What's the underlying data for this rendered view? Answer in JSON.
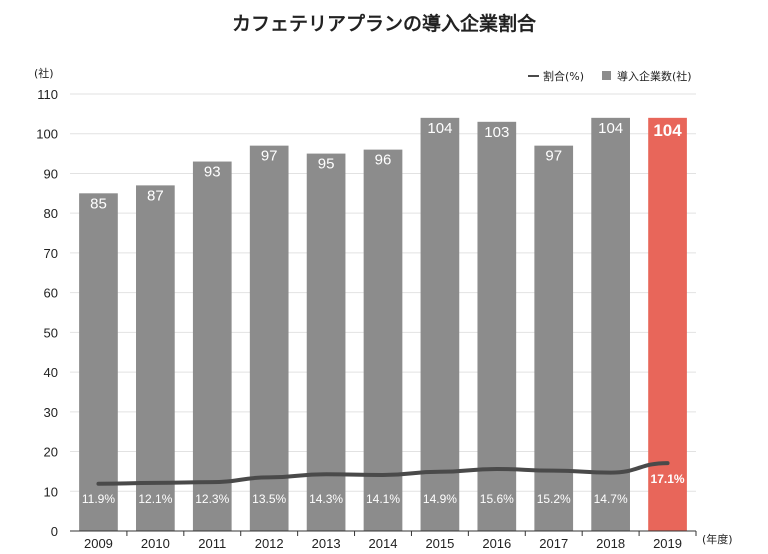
{
  "chart_data": {
    "type": "bar",
    "title": "カフェテリアプランの導入企業割合",
    "y_unit": "(社)",
    "x_unit": "(年度)",
    "ylim": [
      0,
      110
    ],
    "yticks": [
      0,
      10,
      20,
      30,
      40,
      50,
      60,
      70,
      80,
      90,
      100,
      110
    ],
    "categories": [
      "2009",
      "2010",
      "2011",
      "2012",
      "2013",
      "2014",
      "2015",
      "2016",
      "2017",
      "2018",
      "2019"
    ],
    "grid": true,
    "legend_position": "top-right",
    "series": [
      {
        "name": "導入企業数(社)",
        "type": "bar",
        "color": "#8c8c8c",
        "highlight_color": "#e8665a",
        "highlight_category": "2019",
        "values": [
          85,
          87,
          93,
          97,
          95,
          96,
          104,
          103,
          97,
          104,
          104
        ]
      },
      {
        "name": "割合(%)",
        "type": "line",
        "color": "#4a4a4a",
        "values": [
          11.9,
          12.1,
          12.3,
          13.5,
          14.3,
          14.1,
          14.9,
          15.6,
          15.2,
          14.7,
          17.1
        ],
        "labels": [
          "11.9%",
          "12.1%",
          "12.3%",
          "13.5%",
          "14.3%",
          "14.1%",
          "14.9%",
          "15.6%",
          "15.2%",
          "14.7%",
          "17.1%"
        ]
      }
    ]
  }
}
